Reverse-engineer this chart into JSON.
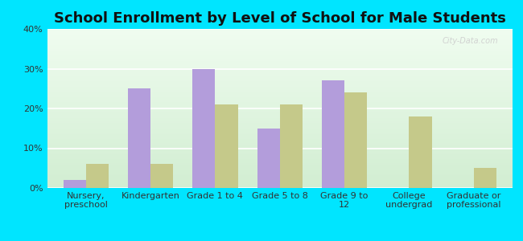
{
  "title": "School Enrollment by Level of School for Male Students",
  "categories": [
    "Nursery,\npreschool",
    "Kindergarten",
    "Grade 1 to 4",
    "Grade 5 to 8",
    "Grade 9 to\n12",
    "College\nundergrad",
    "Graduate or\nprofessional"
  ],
  "wauneta": [
    2,
    25,
    30,
    15,
    27,
    0,
    0
  ],
  "nebraska": [
    6,
    6,
    21,
    21,
    24,
    18,
    5
  ],
  "wauneta_color": "#b39ddb",
  "nebraska_color": "#c5c98a",
  "background_color": "#00e5ff",
  "ylim": [
    0,
    40
  ],
  "yticks": [
    0,
    10,
    20,
    30,
    40
  ],
  "bar_width": 0.35,
  "title_fontsize": 13,
  "tick_fontsize": 8,
  "legend_fontsize": 10,
  "watermark_text": "City-Data.com"
}
